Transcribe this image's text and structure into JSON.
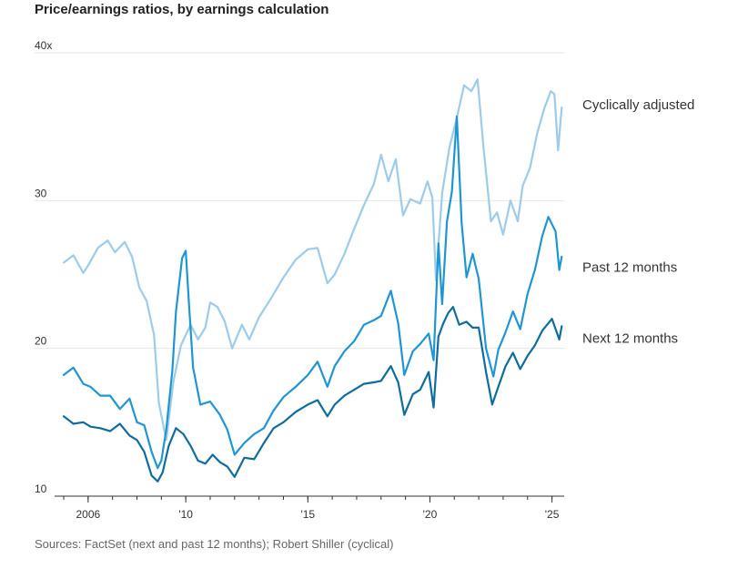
{
  "title": "Price/earnings ratios, by earnings calculation",
  "source": "Sources: FactSet (next and past 12 months); Robert Shiller (cyclical)",
  "chart_data": {
    "type": "line",
    "title": "Price/earnings ratios, by earnings calculation",
    "xlabel": "",
    "ylabel": "",
    "ylim": [
      10,
      40
    ],
    "xlim": [
      2005.0,
      2025.5
    ],
    "grid": true,
    "y_ticks": [
      {
        "value": 10,
        "label": "10"
      },
      {
        "value": 20,
        "label": "20"
      },
      {
        "value": 30,
        "label": "30"
      },
      {
        "value": 40,
        "label": "40x"
      }
    ],
    "x_ticks": [
      {
        "value": 2006,
        "label": "2006"
      },
      {
        "value": 2010,
        "label": "'10"
      },
      {
        "value": 2015,
        "label": "'15"
      },
      {
        "value": 2020,
        "label": "'20"
      },
      {
        "value": 2025,
        "label": "'25"
      }
    ],
    "colors": {
      "cyclically_adjusted": "#9dcbea",
      "past_12_months": "#1f96d3",
      "next_12_months": "#0f6d9e",
      "grid": "#e6e6e6",
      "axis": "#333333"
    },
    "series": [
      {
        "name": "Cyclically adjusted",
        "key": "cyclically_adjusted",
        "x": [
          2005.0,
          2005.4,
          2005.8,
          2006.0,
          2006.4,
          2006.8,
          2007.1,
          2007.5,
          2007.8,
          2008.1,
          2008.4,
          2008.7,
          2008.9,
          2009.2,
          2009.5,
          2009.8,
          2010.2,
          2010.5,
          2010.8,
          2011.0,
          2011.3,
          2011.6,
          2011.9,
          2012.3,
          2012.6,
          2013.0,
          2013.5,
          2014.0,
          2014.5,
          2015.0,
          2015.4,
          2015.8,
          2016.1,
          2016.5,
          2016.9,
          2017.3,
          2017.7,
          2018.0,
          2018.3,
          2018.6,
          2018.9,
          2019.2,
          2019.6,
          2019.9,
          2020.1,
          2020.25,
          2020.5,
          2020.8,
          2021.1,
          2021.4,
          2021.7,
          2021.95,
          2022.2,
          2022.5,
          2022.75,
          2023.0,
          2023.3,
          2023.6,
          2023.8,
          2024.1,
          2024.4,
          2024.7,
          2024.95,
          2025.1,
          2025.25,
          2025.4
        ],
        "values": [
          25.8,
          26.3,
          25.1,
          25.6,
          26.8,
          27.3,
          26.5,
          27.2,
          26.2,
          24.1,
          23.2,
          20.9,
          16.3,
          13.8,
          17.8,
          20.2,
          21.6,
          20.6,
          21.4,
          23.1,
          22.8,
          21.8,
          20.0,
          21.6,
          20.6,
          22.1,
          23.4,
          24.8,
          26.0,
          26.7,
          26.8,
          24.4,
          25.0,
          26.4,
          28.1,
          29.7,
          31.1,
          33.1,
          31.3,
          32.8,
          29.0,
          30.1,
          29.8,
          31.3,
          30.2,
          24.6,
          30.5,
          33.6,
          35.6,
          37.8,
          37.4,
          38.2,
          33.5,
          28.6,
          29.2,
          27.7,
          30.0,
          28.6,
          31.0,
          32.2,
          34.6,
          36.3,
          37.4,
          37.2,
          33.4,
          36.3
        ]
      },
      {
        "name": "Past 12 months",
        "key": "past_12_months",
        "x": [
          2005.0,
          2005.4,
          2005.8,
          2006.1,
          2006.5,
          2006.9,
          2007.3,
          2007.7,
          2008.0,
          2008.3,
          2008.6,
          2008.85,
          2009.0,
          2009.2,
          2009.45,
          2009.6,
          2009.85,
          2010.0,
          2010.15,
          2010.3,
          2010.6,
          2011.0,
          2011.4,
          2011.7,
          2012.0,
          2012.4,
          2012.8,
          2013.2,
          2013.6,
          2014.0,
          2014.5,
          2015.0,
          2015.4,
          2015.8,
          2016.1,
          2016.5,
          2016.9,
          2017.3,
          2017.7,
          2018.0,
          2018.4,
          2018.7,
          2018.95,
          2019.3,
          2019.6,
          2019.95,
          2020.15,
          2020.35,
          2020.5,
          2020.7,
          2020.9,
          2021.1,
          2021.3,
          2021.5,
          2021.75,
          2022.0,
          2022.3,
          2022.6,
          2022.8,
          2023.1,
          2023.4,
          2023.7,
          2024.0,
          2024.3,
          2024.6,
          2024.85,
          2025.0,
          2025.15,
          2025.3,
          2025.4
        ],
        "values": [
          18.2,
          18.7,
          17.6,
          17.4,
          16.8,
          16.8,
          15.9,
          16.6,
          15.0,
          14.8,
          13.0,
          11.9,
          12.4,
          14.5,
          18.5,
          22.5,
          26.1,
          26.6,
          22.5,
          18.7,
          16.2,
          16.4,
          15.5,
          14.5,
          12.8,
          13.6,
          14.2,
          14.6,
          15.8,
          16.7,
          17.4,
          18.2,
          19.1,
          17.4,
          18.8,
          19.8,
          20.5,
          21.6,
          21.9,
          22.2,
          23.9,
          21.7,
          18.2,
          19.8,
          20.3,
          21.0,
          19.2,
          27.1,
          23.0,
          28.6,
          30.6,
          35.7,
          28.5,
          24.8,
          26.4,
          24.7,
          20.0,
          18.1,
          19.9,
          21.1,
          22.5,
          21.3,
          23.7,
          25.3,
          27.6,
          28.9,
          28.4,
          27.9,
          25.3,
          26.2
        ]
      },
      {
        "name": "Next 12 months",
        "key": "next_12_months",
        "x": [
          2005.0,
          2005.4,
          2005.8,
          2006.1,
          2006.5,
          2006.9,
          2007.3,
          2007.7,
          2008.0,
          2008.3,
          2008.6,
          2008.85,
          2009.05,
          2009.3,
          2009.6,
          2009.9,
          2010.2,
          2010.5,
          2010.8,
          2011.1,
          2011.4,
          2011.7,
          2012.0,
          2012.4,
          2012.8,
          2013.2,
          2013.6,
          2014.0,
          2014.5,
          2015.0,
          2015.4,
          2015.8,
          2016.1,
          2016.5,
          2016.9,
          2017.3,
          2017.7,
          2018.0,
          2018.4,
          2018.7,
          2018.95,
          2019.3,
          2019.6,
          2019.95,
          2020.15,
          2020.35,
          2020.55,
          2020.75,
          2020.95,
          2021.2,
          2021.5,
          2021.75,
          2022.0,
          2022.3,
          2022.55,
          2022.8,
          2023.1,
          2023.4,
          2023.7,
          2024.0,
          2024.3,
          2024.6,
          2024.85,
          2025.0,
          2025.15,
          2025.3,
          2025.4
        ],
        "values": [
          15.4,
          14.9,
          15.0,
          14.7,
          14.6,
          14.4,
          14.9,
          14.1,
          13.8,
          13.0,
          11.4,
          11.0,
          11.6,
          13.4,
          14.6,
          14.2,
          13.4,
          12.4,
          12.2,
          12.8,
          12.3,
          12.0,
          11.3,
          12.6,
          12.5,
          13.6,
          14.6,
          15.0,
          15.7,
          16.2,
          16.5,
          15.4,
          16.2,
          16.8,
          17.2,
          17.6,
          17.7,
          17.8,
          18.8,
          17.7,
          15.5,
          16.9,
          17.2,
          18.4,
          16.0,
          20.8,
          21.7,
          22.4,
          22.8,
          21.6,
          21.8,
          21.4,
          21.4,
          18.4,
          16.2,
          17.4,
          18.8,
          19.7,
          18.6,
          19.5,
          20.2,
          21.2,
          21.7,
          22.0,
          21.3,
          20.6,
          21.5
        ]
      }
    ]
  }
}
